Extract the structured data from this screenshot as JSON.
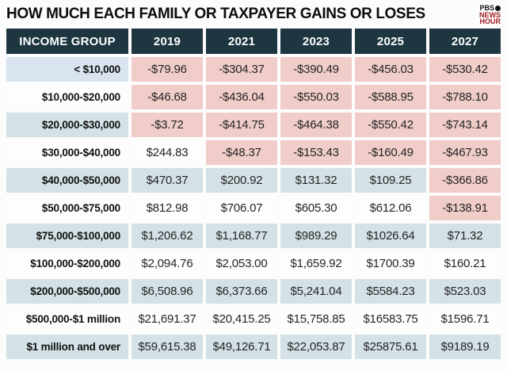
{
  "title": "HOW MUCH EACH FAMILY OR TAXPAYER GAINS OR LOSES",
  "logo": {
    "pbs": "PBS",
    "news": "NEWS",
    "hour": "HOUR"
  },
  "theme": {
    "header_bg": "#1d3640",
    "negative_bg": "#f0cdc9",
    "alt_bg": "#d4e1e7",
    "first_income_bg": "#d9e4f0",
    "page_bg": "#fcfcfc",
    "logo_red": "#9f1d20",
    "text_dark": "#1f1f1f"
  },
  "chart_data": {
    "type": "table",
    "title": "HOW MUCH EACH FAMILY OR TAXPAYER GAINS OR LOSES",
    "columns": [
      "INCOME GROUP",
      "2019",
      "2021",
      "2023",
      "2025",
      "2027"
    ],
    "rows": [
      {
        "group": "< $10,000",
        "values": [
          "-$79.96",
          "-$304.37",
          "-$390.49",
          "-$456.03",
          "-$530.42"
        ]
      },
      {
        "group": "$10,000-$20,000",
        "values": [
          "-$46.68",
          "-$436.04",
          "-$550.03",
          "-$588.95",
          "-$788.10"
        ]
      },
      {
        "group": "$20,000-$30,000",
        "values": [
          "-$3.72",
          "-$414.75",
          "-$464.38",
          "-$550.42",
          "-$743.14"
        ]
      },
      {
        "group": "$30,000-$40,000",
        "values": [
          "$244.83",
          "-$48.37",
          "-$153.43",
          "-$160.49",
          "-$467.93"
        ]
      },
      {
        "group": "$40,000-$50,000",
        "values": [
          "$470.37",
          "$200.92",
          "$131.32",
          "$109.25",
          "-$366.86"
        ]
      },
      {
        "group": "$50,000-$75,000",
        "values": [
          "$812.98",
          "$706.07",
          "$605.30",
          "$612.06",
          "-$138.91"
        ]
      },
      {
        "group": "$75,000-$100,000",
        "values": [
          "$1,206.62",
          "$1,168.77",
          "$989.29",
          "$1026.64",
          "$71.32"
        ]
      },
      {
        "group": "$100,000-$200,000",
        "values": [
          "$2,094.76",
          "$2,053.00",
          "$1,659.92",
          "$1700.39",
          "$160.21"
        ]
      },
      {
        "group": "$200,000-$500,000",
        "values": [
          "$6,508.96",
          "$6,373.66",
          "$5,241.04",
          "$5584.23",
          "$523.03"
        ]
      },
      {
        "group": "$500,000-$1 million",
        "values": [
          "$21,691.37",
          "$20,415.25",
          "$15,758.85",
          "$16583.75",
          "$1596.71"
        ]
      },
      {
        "group": "$1 million and over",
        "values": [
          "$59,615.38",
          "$49,126.71",
          "$22,053.87",
          "$25875.61",
          "$9189.19"
        ]
      }
    ]
  }
}
